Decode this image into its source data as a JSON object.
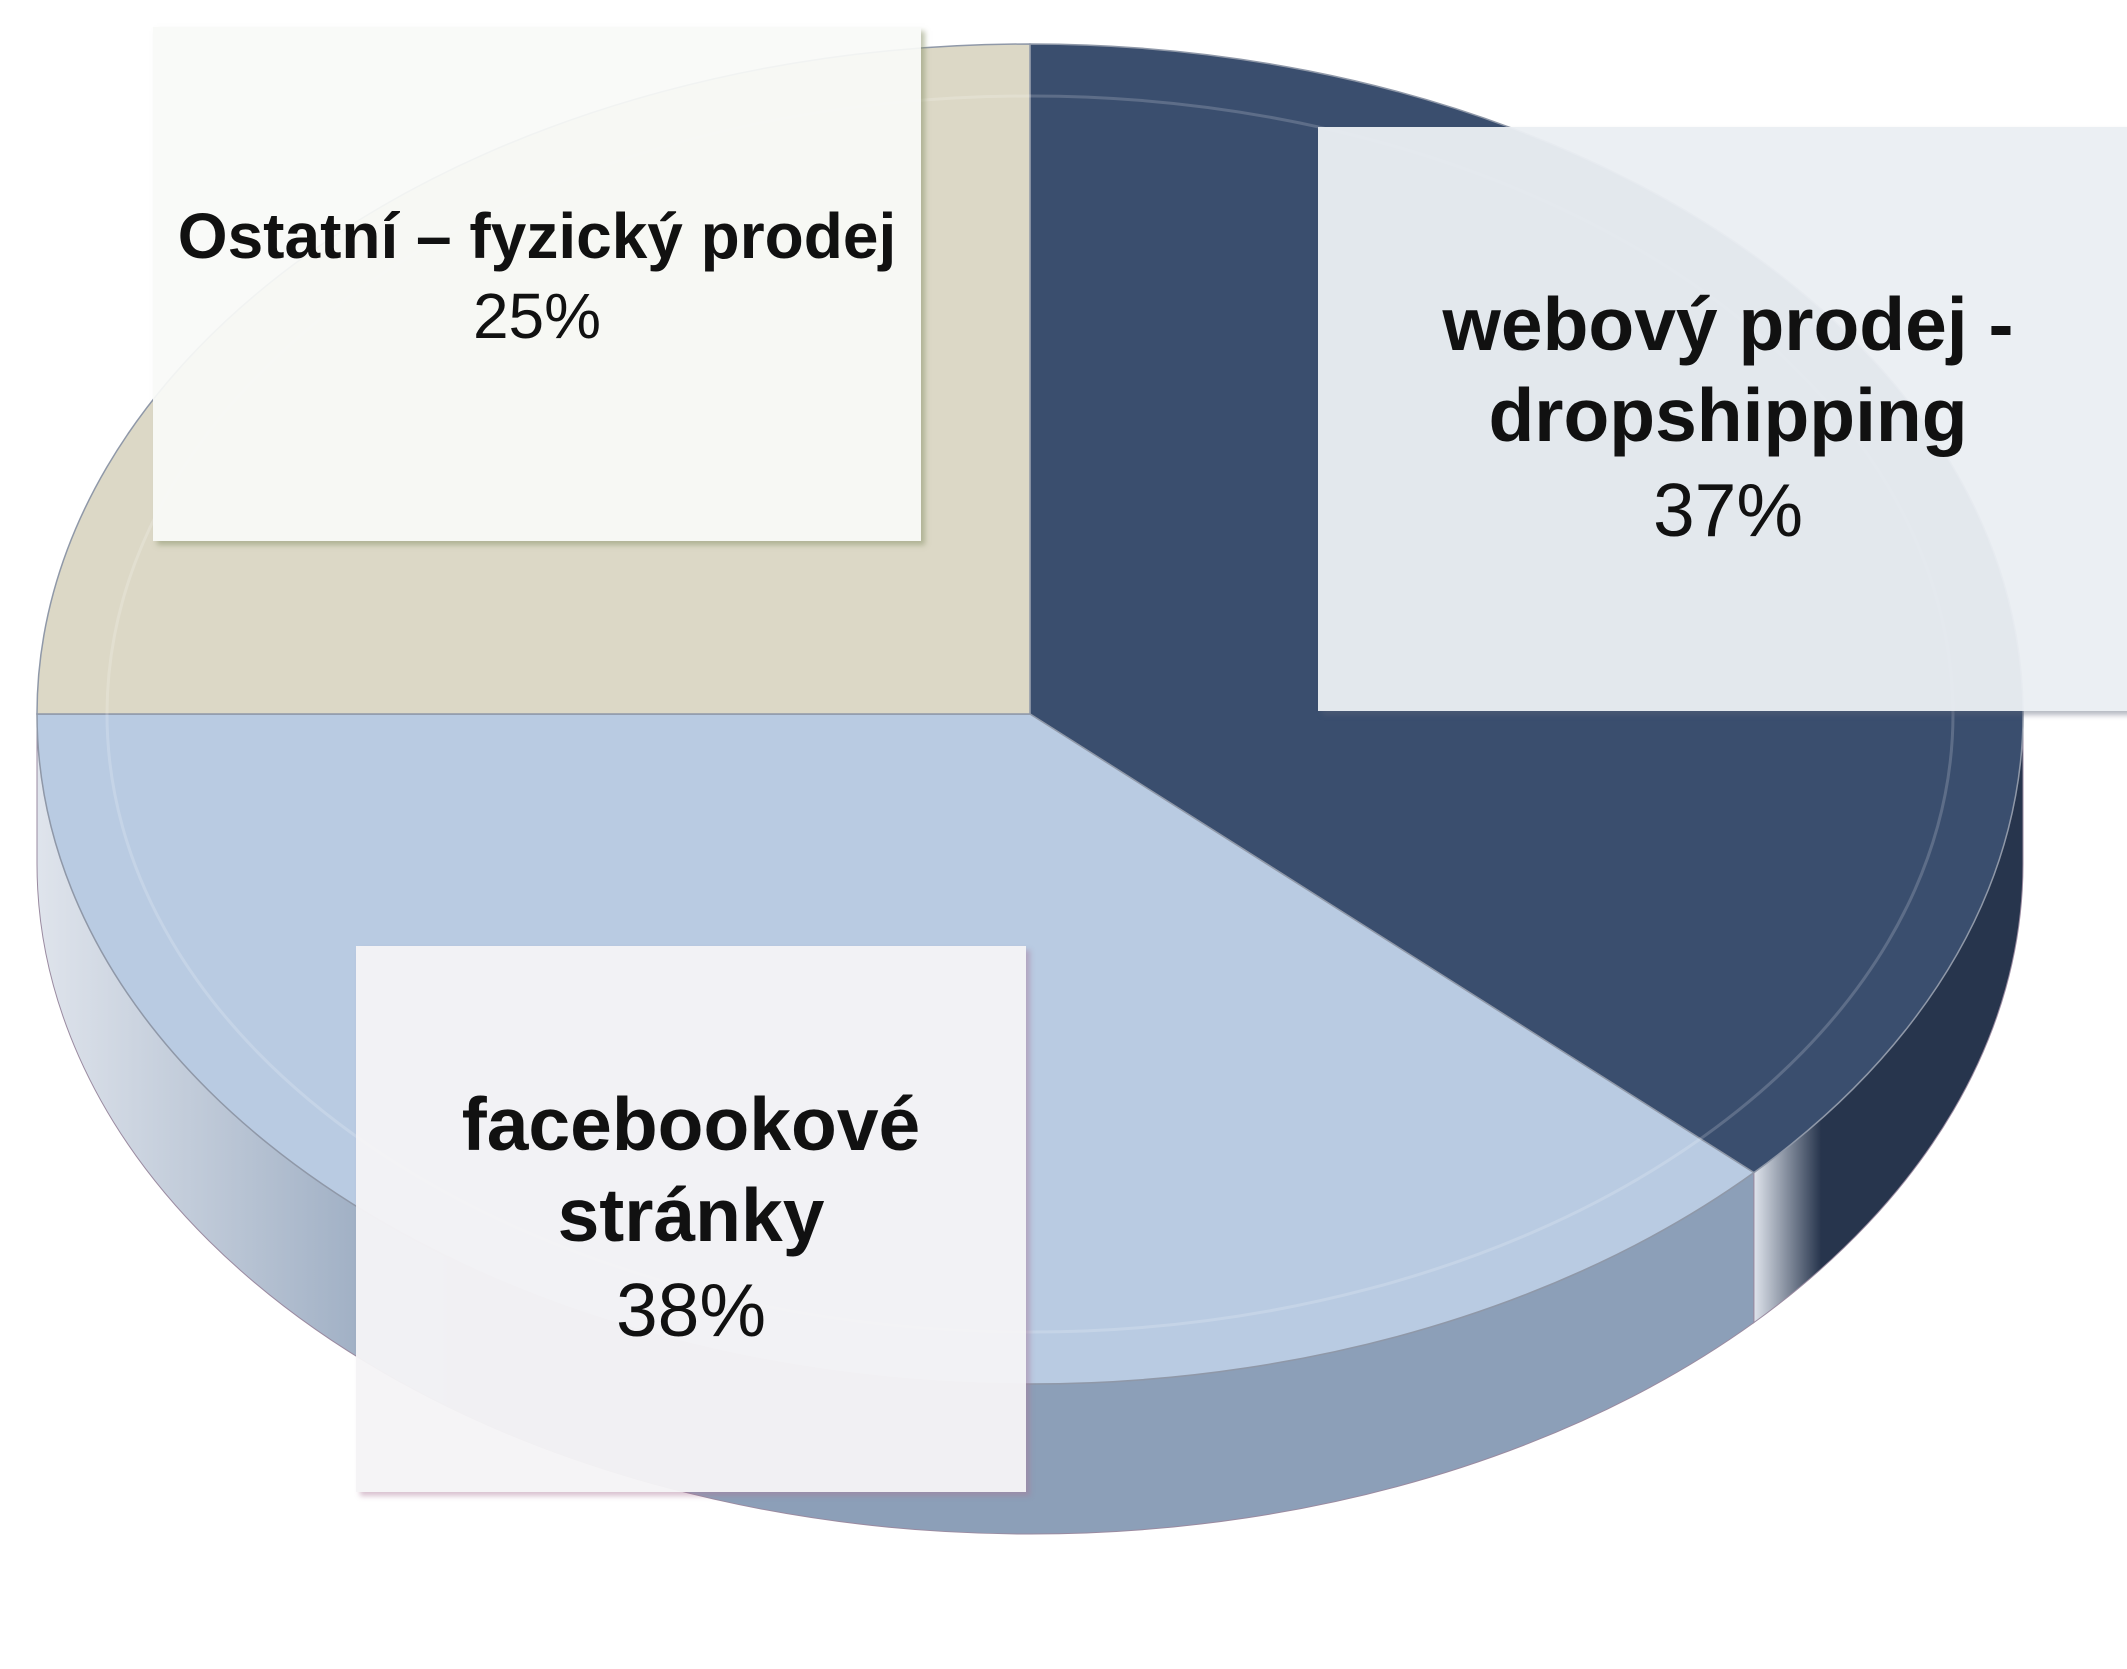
{
  "chart_data": {
    "type": "pie",
    "title": "",
    "three_d": true,
    "legend": "none",
    "data_labels": "category name and percentage",
    "slices": [
      {
        "label": "webový prodej - dropshipping",
        "label_lines": [
          "webový prodej -",
          "dropshipping"
        ],
        "value": 37,
        "value_label": "37%",
        "color": "#3a4e6e"
      },
      {
        "label": "facebookové stránky",
        "label_lines": [
          "facebookové",
          "stránky"
        ],
        "value": 38,
        "value_label": "38%",
        "color": "#b9cbe2"
      },
      {
        "label": "Ostatní – fyzický prodej",
        "label_lines": [
          "Ostatní – fyzický prodej"
        ],
        "value": 25,
        "value_label": "25%",
        "color": "#dcd8c6"
      }
    ],
    "side_colors": {
      "webový prodej - dropshipping": "#27354d",
      "facebookové stránky": "#8c9fb8",
      "Ostatní – fyzický prodej": "#b8b4a0"
    }
  }
}
